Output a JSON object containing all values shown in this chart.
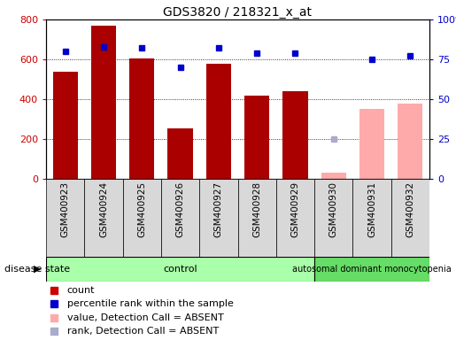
{
  "title": "GDS3820 / 218321_x_at",
  "samples": [
    "GSM400923",
    "GSM400924",
    "GSM400925",
    "GSM400926",
    "GSM400927",
    "GSM400928",
    "GSM400929",
    "GSM400930",
    "GSM400931",
    "GSM400932"
  ],
  "count_values": [
    540,
    770,
    605,
    255,
    580,
    420,
    440,
    30,
    350,
    380
  ],
  "count_absent": [
    false,
    false,
    false,
    false,
    false,
    false,
    false,
    true,
    true,
    true
  ],
  "rank_values": [
    80,
    83,
    82,
    70,
    82,
    79,
    79,
    null,
    75,
    77
  ],
  "rank_absent_values": [
    null,
    null,
    null,
    null,
    null,
    null,
    null,
    25,
    null,
    null
  ],
  "bar_color_present": "#aa0000",
  "bar_color_absent": "#ffaaaa",
  "dot_color_present": "#0000cc",
  "dot_color_absent": "#aaaacc",
  "ylim_left": [
    0,
    800
  ],
  "ylim_right": [
    0,
    100
  ],
  "yticks_left": [
    0,
    200,
    400,
    600,
    800
  ],
  "ytick_labels_left": [
    "0",
    "200",
    "400",
    "600",
    "800"
  ],
  "yticks_right": [
    0,
    25,
    50,
    75,
    100
  ],
  "ytick_labels_right": [
    "0",
    "25",
    "50",
    "75",
    "100%"
  ],
  "control_samples": 7,
  "disease_samples": 3,
  "control_label": "control",
  "disease_label": "autosomal dominant monocytopenia",
  "control_color": "#aaffaa",
  "disease_color": "#66dd66",
  "disease_state_label": "disease state",
  "legend_items": [
    {
      "label": "count",
      "color": "#cc0000"
    },
    {
      "label": "percentile rank within the sample",
      "color": "#0000cc"
    },
    {
      "label": "value, Detection Call = ABSENT",
      "color": "#ffaaaa"
    },
    {
      "label": "rank, Detection Call = ABSENT",
      "color": "#aaaacc"
    }
  ]
}
